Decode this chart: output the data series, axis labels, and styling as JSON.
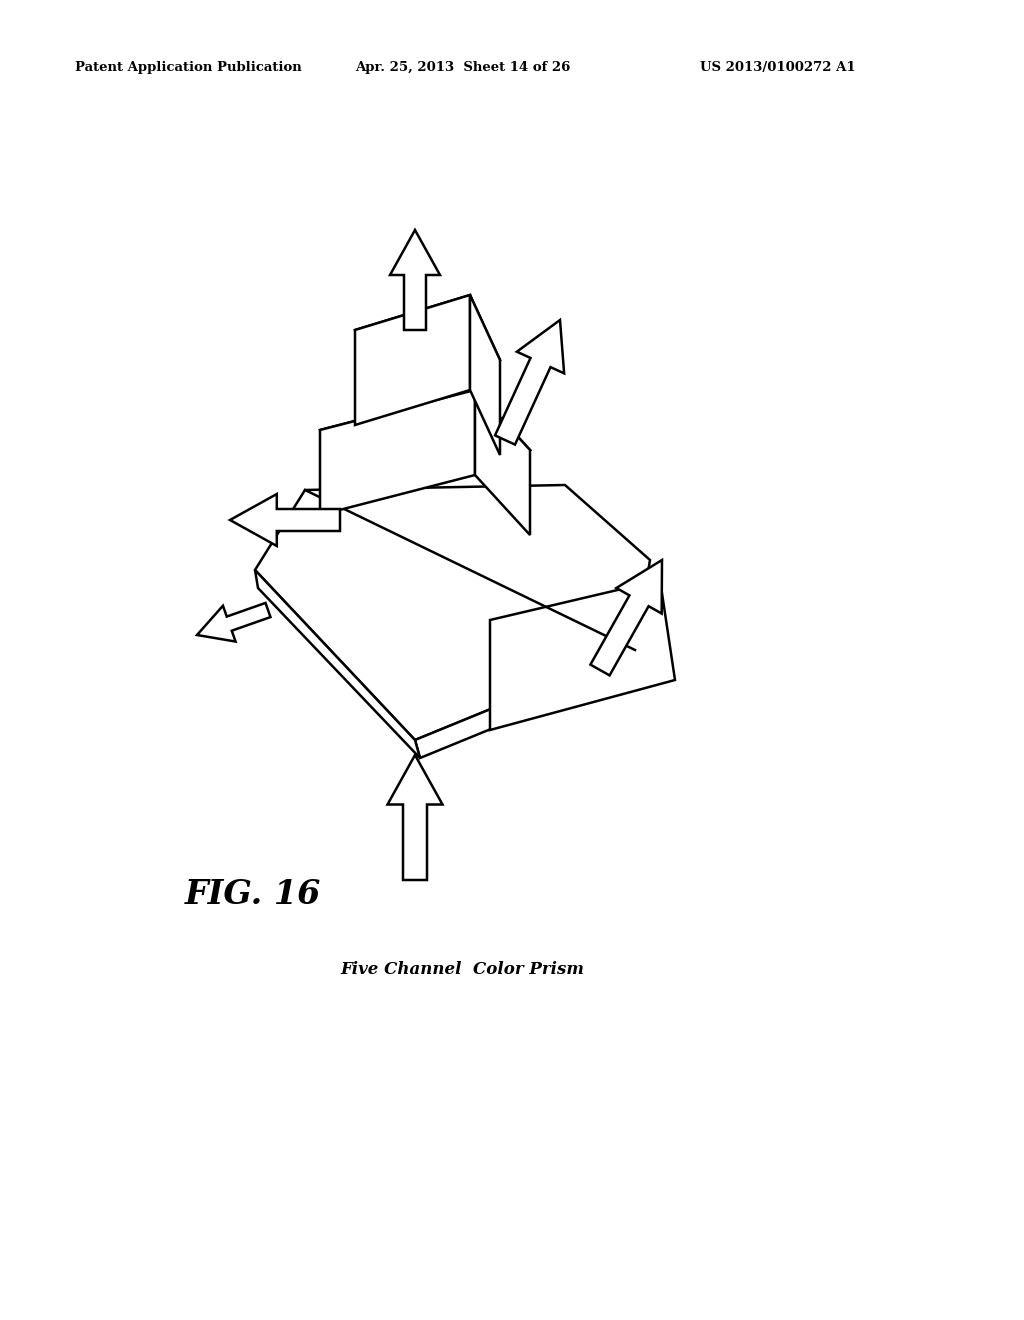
{
  "title_line1": "Patent Application Publication",
  "title_line2": "Apr. 25, 2013  Sheet 14 of 26",
  "title_line3": "US 2013/0100272 A1",
  "fig_label": "FIG. 16",
  "caption": "Five Channel  Color Prism",
  "bg_color": "#ffffff",
  "line_color": "#000000",
  "line_width": 1.8
}
